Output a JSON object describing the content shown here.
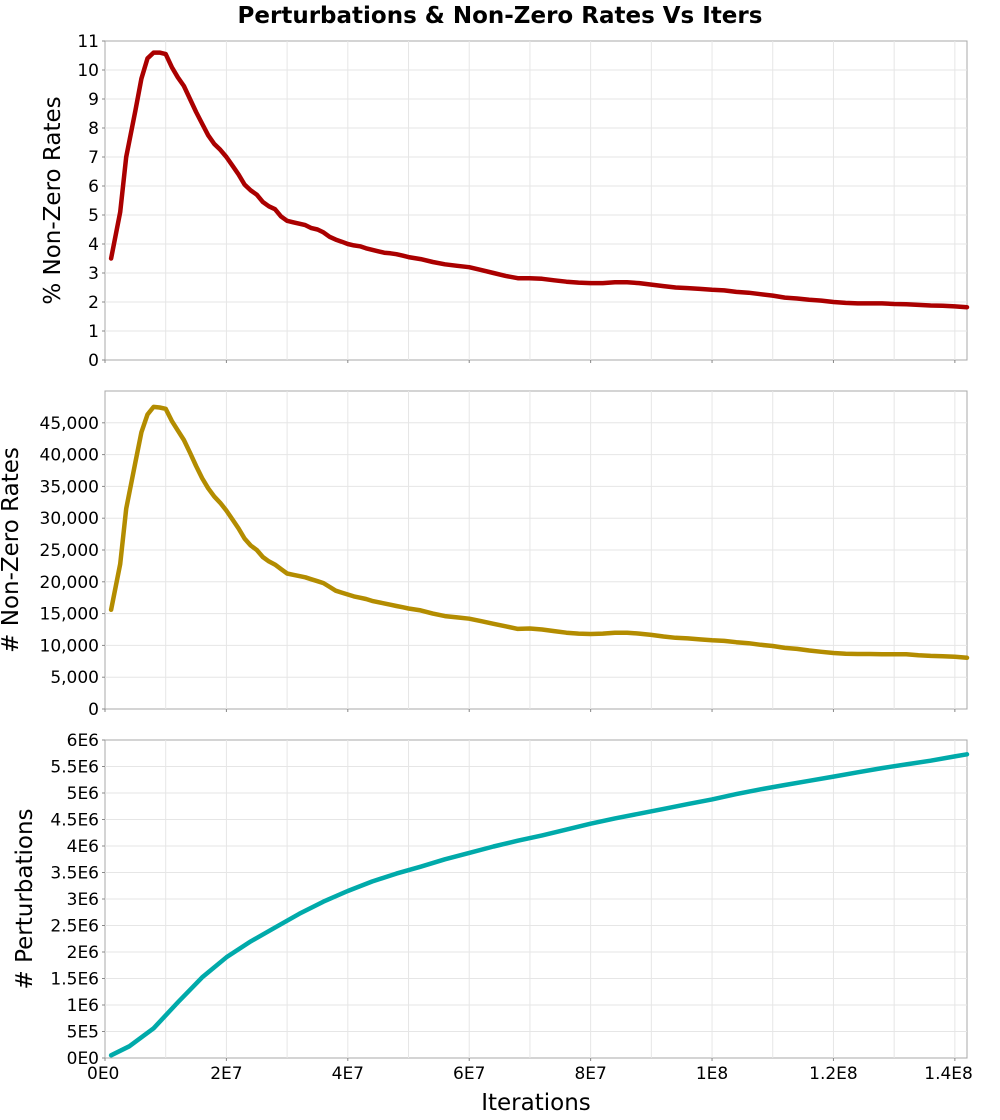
{
  "chart_data": {
    "type": "line",
    "title": "Perturbations & Non-Zero Rates Vs Iters",
    "xlabel": "Iterations",
    "xlim": [
      0,
      142000000
    ],
    "xticks": [
      0,
      20000000,
      40000000,
      60000000,
      80000000,
      100000000,
      120000000,
      140000000
    ],
    "xtick_labels": [
      "0E0",
      "2E7",
      "4E7",
      "6E7",
      "8E7",
      "1E8",
      "1.2E8",
      "1.4E8"
    ],
    "grid": true,
    "panels": [
      {
        "ylabel": "% Non-Zero Rates",
        "ylim": [
          0,
          11
        ],
        "yticks": [
          0,
          1,
          2,
          3,
          4,
          5,
          6,
          7,
          8,
          9,
          10,
          11
        ],
        "ytick_labels": [
          "0",
          "1",
          "2",
          "3",
          "4",
          "5",
          "6",
          "7",
          "8",
          "9",
          "10",
          "11"
        ],
        "color": "#aa0000",
        "x": [
          1000000,
          2500000,
          3500000,
          5000000,
          6000000,
          7000000,
          8000000,
          9000000,
          10000000,
          11000000,
          12000000,
          13000000,
          14000000,
          15000000,
          16000000,
          17000000,
          18000000,
          19000000,
          20000000,
          21000000,
          22000000,
          23000000,
          24000000,
          25000000,
          26000000,
          27000000,
          28000000,
          29000000,
          30000000,
          31000000,
          32000000,
          33000000,
          34000000,
          35000000,
          36000000,
          37000000,
          38000000,
          39000000,
          40000000,
          41000000,
          42000000,
          43000000,
          44000000,
          45000000,
          46000000,
          47000000,
          48000000,
          49000000,
          50000000,
          52000000,
          54000000,
          56000000,
          58000000,
          60000000,
          62000000,
          64000000,
          66000000,
          68000000,
          70000000,
          72000000,
          74000000,
          76000000,
          78000000,
          80000000,
          82000000,
          84000000,
          86000000,
          88000000,
          90000000,
          92000000,
          94000000,
          96000000,
          98000000,
          100000000,
          102000000,
          104000000,
          106000000,
          108000000,
          110000000,
          112000000,
          114000000,
          116000000,
          118000000,
          120000000,
          122000000,
          124000000,
          126000000,
          128000000,
          130000000,
          132000000,
          134000000,
          136000000,
          138000000,
          140000000,
          142000000
        ],
        "y": [
          3.5,
          5.1,
          7.0,
          8.6,
          9.7,
          10.4,
          10.6,
          10.6,
          10.55,
          10.1,
          9.75,
          9.45,
          9.0,
          8.55,
          8.15,
          7.75,
          7.45,
          7.25,
          7.0,
          6.7,
          6.4,
          6.05,
          5.85,
          5.7,
          5.45,
          5.3,
          5.2,
          4.95,
          4.8,
          4.75,
          4.7,
          4.65,
          4.55,
          4.5,
          4.4,
          4.25,
          4.15,
          4.08,
          4.0,
          3.95,
          3.92,
          3.85,
          3.8,
          3.75,
          3.7,
          3.68,
          3.65,
          3.6,
          3.55,
          3.48,
          3.38,
          3.3,
          3.25,
          3.2,
          3.1,
          3.0,
          2.9,
          2.82,
          2.82,
          2.8,
          2.75,
          2.7,
          2.67,
          2.65,
          2.65,
          2.68,
          2.68,
          2.65,
          2.6,
          2.55,
          2.5,
          2.48,
          2.45,
          2.42,
          2.4,
          2.35,
          2.32,
          2.27,
          2.22,
          2.15,
          2.12,
          2.08,
          2.05,
          2.0,
          1.97,
          1.95,
          1.95,
          1.95,
          1.93,
          1.92,
          1.9,
          1.88,
          1.87,
          1.85,
          1.82
        ]
      },
      {
        "ylabel": "# Non-Zero Rates",
        "ylim": [
          0,
          50000
        ],
        "yticks": [
          0,
          5000,
          10000,
          15000,
          20000,
          25000,
          30000,
          35000,
          40000,
          45000
        ],
        "ytick_labels": [
          "0",
          "5,000",
          "10,000",
          "15,000",
          "20,000",
          "25,000",
          "30,000",
          "35,000",
          "40,000",
          "45,000"
        ],
        "color": "#b38c00",
        "x": [
          1000000,
          2500000,
          3500000,
          5000000,
          6000000,
          7000000,
          8000000,
          9000000,
          10000000,
          11000000,
          12000000,
          13000000,
          14000000,
          15000000,
          16000000,
          17000000,
          18000000,
          19000000,
          20000000,
          21000000,
          22000000,
          23000000,
          24000000,
          25000000,
          26000000,
          27000000,
          28000000,
          29000000,
          30000000,
          31000000,
          32000000,
          33000000,
          34000000,
          35000000,
          36000000,
          37000000,
          38000000,
          39000000,
          40000000,
          41000000,
          42000000,
          43000000,
          44000000,
          45000000,
          46000000,
          47000000,
          48000000,
          49000000,
          50000000,
          52000000,
          54000000,
          56000000,
          58000000,
          60000000,
          62000000,
          64000000,
          66000000,
          68000000,
          70000000,
          72000000,
          74000000,
          76000000,
          78000000,
          80000000,
          82000000,
          84000000,
          86000000,
          88000000,
          90000000,
          92000000,
          94000000,
          96000000,
          98000000,
          100000000,
          102000000,
          104000000,
          106000000,
          108000000,
          110000000,
          112000000,
          114000000,
          116000000,
          118000000,
          120000000,
          122000000,
          124000000,
          126000000,
          128000000,
          130000000,
          132000000,
          134000000,
          136000000,
          138000000,
          140000000,
          142000000
        ],
        "y": [
          15600,
          22800,
          31500,
          38800,
          43500,
          46300,
          47500,
          47400,
          47200,
          45300,
          43800,
          42300,
          40300,
          38200,
          36300,
          34700,
          33400,
          32400,
          31200,
          29800,
          28400,
          26800,
          25700,
          25000,
          23900,
          23200,
          22700,
          22000,
          21300,
          21100,
          20900,
          20700,
          20400,
          20100,
          19800,
          19200,
          18600,
          18300,
          18000,
          17700,
          17500,
          17300,
          17000,
          16800,
          16600,
          16400,
          16200,
          16000,
          15800,
          15500,
          15000,
          14600,
          14400,
          14200,
          13800,
          13400,
          13000,
          12600,
          12650,
          12500,
          12250,
          12000,
          11850,
          11800,
          11850,
          12000,
          12000,
          11850,
          11650,
          11400,
          11200,
          11100,
          10950,
          10800,
          10700,
          10500,
          10350,
          10100,
          9900,
          9600,
          9450,
          9200,
          9000,
          8800,
          8700,
          8650,
          8650,
          8620,
          8600,
          8620,
          8450,
          8350,
          8300,
          8200,
          8050
        ]
      },
      {
        "ylabel": "# Perturbations",
        "ylim": [
          0,
          6000000
        ],
        "yticks": [
          0,
          500000,
          1000000,
          1500000,
          2000000,
          2500000,
          3000000,
          3500000,
          4000000,
          4500000,
          5000000,
          5500000,
          6000000
        ],
        "ytick_labels": [
          "0E0",
          "5E5",
          "1E6",
          "1.5E6",
          "2E6",
          "2.5E6",
          "3E6",
          "3.5E6",
          "4E6",
          "4.5E6",
          "5E6",
          "5.5E6",
          "6E6"
        ],
        "color": "#00aaaa",
        "x": [
          1000000,
          4000000,
          8000000,
          12000000,
          16000000,
          20000000,
          24000000,
          28000000,
          32000000,
          36000000,
          40000000,
          44000000,
          48000000,
          52000000,
          56000000,
          60000000,
          64000000,
          68000000,
          72000000,
          76000000,
          80000000,
          84000000,
          88000000,
          92000000,
          96000000,
          100000000,
          104000000,
          108000000,
          112000000,
          116000000,
          120000000,
          124000000,
          128000000,
          132000000,
          136000000,
          140000000,
          142000000
        ],
        "y": [
          50000,
          220000,
          560000,
          1050000,
          1520000,
          1900000,
          2200000,
          2460000,
          2720000,
          2950000,
          3150000,
          3330000,
          3480000,
          3610000,
          3750000,
          3870000,
          3990000,
          4100000,
          4200000,
          4310000,
          4420000,
          4520000,
          4610000,
          4700000,
          4790000,
          4880000,
          4980000,
          5070000,
          5150000,
          5230000,
          5310000,
          5390000,
          5470000,
          5540000,
          5610000,
          5690000,
          5730000
        ]
      }
    ]
  }
}
